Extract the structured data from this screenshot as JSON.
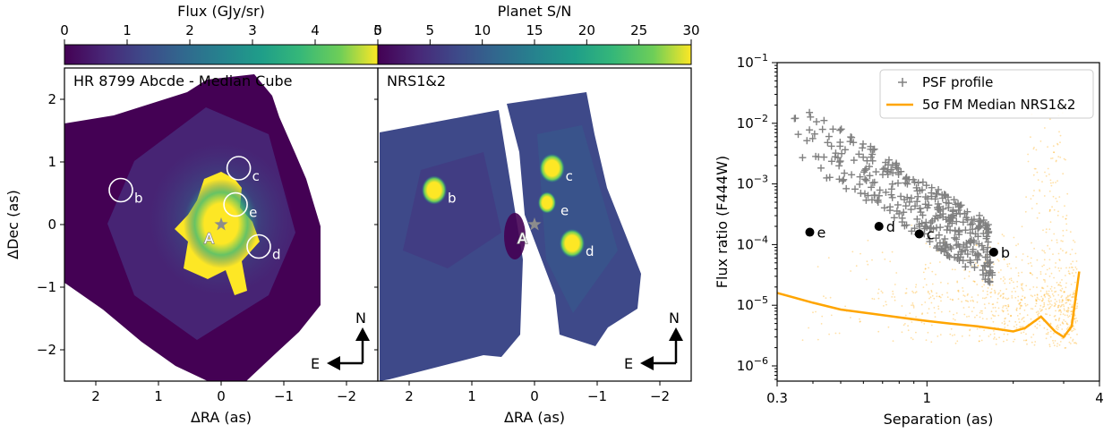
{
  "chart_data": [
    {
      "type": "heatmap",
      "title": "HR 8799 Abcde - Median Cube",
      "xlabel": "ΔRA (as)",
      "ylabel": "ΔDec (as)",
      "xlim": [
        2.5,
        -2.5
      ],
      "ylim": [
        -2.5,
        2.5
      ],
      "x_ticks": [
        "2",
        "1",
        "0",
        "−1",
        "−2"
      ],
      "y_ticks": [
        "2",
        "1",
        "0",
        "−1",
        "−2"
      ],
      "colorbar": {
        "label": "Flux (GJy/sr)",
        "range": [
          0,
          5
        ],
        "ticks": [
          "0",
          "1",
          "2",
          "3",
          "4",
          "5"
        ]
      },
      "star": {
        "label": "A",
        "x": 0.0,
        "y": 0.0
      },
      "planets": [
        {
          "label": "b",
          "x": 1.6,
          "y": 0.55
        },
        {
          "label": "c",
          "x": -0.28,
          "y": 0.9
        },
        {
          "label": "e",
          "x": -0.23,
          "y": 0.32
        },
        {
          "label": "d",
          "x": -0.6,
          "y": -0.35
        }
      ],
      "compass": {
        "north": "N",
        "east": "E"
      }
    },
    {
      "type": "heatmap",
      "title": "NRS1&2",
      "xlabel": "ΔRA (as)",
      "ylabel": "",
      "xlim": [
        2.5,
        -2.5
      ],
      "ylim": [
        -2.5,
        2.5
      ],
      "x_ticks": [
        "2",
        "1",
        "0",
        "−1",
        "−2"
      ],
      "colorbar": {
        "label": "Planet S/N",
        "range": [
          0,
          30
        ],
        "ticks": [
          "0",
          "5",
          "10",
          "15",
          "20",
          "25",
          "30"
        ]
      },
      "star": {
        "label": "A",
        "x": 0.0,
        "y": 0.0
      },
      "planets": [
        {
          "label": "b",
          "x": 1.6,
          "y": 0.55
        },
        {
          "label": "c",
          "x": -0.28,
          "y": 0.9
        },
        {
          "label": "e",
          "x": -0.2,
          "y": 0.35
        },
        {
          "label": "d",
          "x": -0.6,
          "y": -0.3
        }
      ],
      "compass": {
        "north": "N",
        "east": "E"
      }
    },
    {
      "type": "scatter",
      "xlabel": "Separation (as)",
      "ylabel": "Flux ratio (F444W)",
      "x_scale": "log",
      "y_scale": "log",
      "xlim": [
        0.3,
        4
      ],
      "ylim": [
        5e-07,
        0.1
      ],
      "x_ticks": [
        "0.3",
        "1",
        "4"
      ],
      "y_tick_exponents": [
        "−1",
        "−2",
        "−3",
        "−4",
        "−5",
        "−6"
      ],
      "legend_position": "top-right",
      "series": [
        {
          "name": "PSF profile",
          "marker": "plus",
          "color": "#808080"
        },
        {
          "name": "5σ FM Median NRS1&2",
          "color": "#ffa500",
          "x": [
            0.3,
            0.4,
            0.5,
            0.65,
            0.8,
            1.0,
            1.2,
            1.5,
            1.8,
            2.0,
            2.2,
            2.5,
            2.8,
            3.0,
            3.2,
            3.4
          ],
          "y": [
            1.6e-05,
            1.1e-05,
            8.5e-06,
            7.2e-06,
            6.3e-06,
            5.5e-06,
            5e-06,
            4.5e-06,
            4e-06,
            3.7e-06,
            4.2e-06,
            6.5e-06,
            3.7e-06,
            3e-06,
            4.5e-06,
            3.6e-05
          ]
        }
      ],
      "planets": [
        {
          "label": "e",
          "x": 0.39,
          "y": 0.00016
        },
        {
          "label": "d",
          "x": 0.68,
          "y": 0.0002
        },
        {
          "label": "c",
          "x": 0.94,
          "y": 0.00015
        },
        {
          "label": "b",
          "x": 1.71,
          "y": 7.5e-05
        }
      ]
    }
  ]
}
